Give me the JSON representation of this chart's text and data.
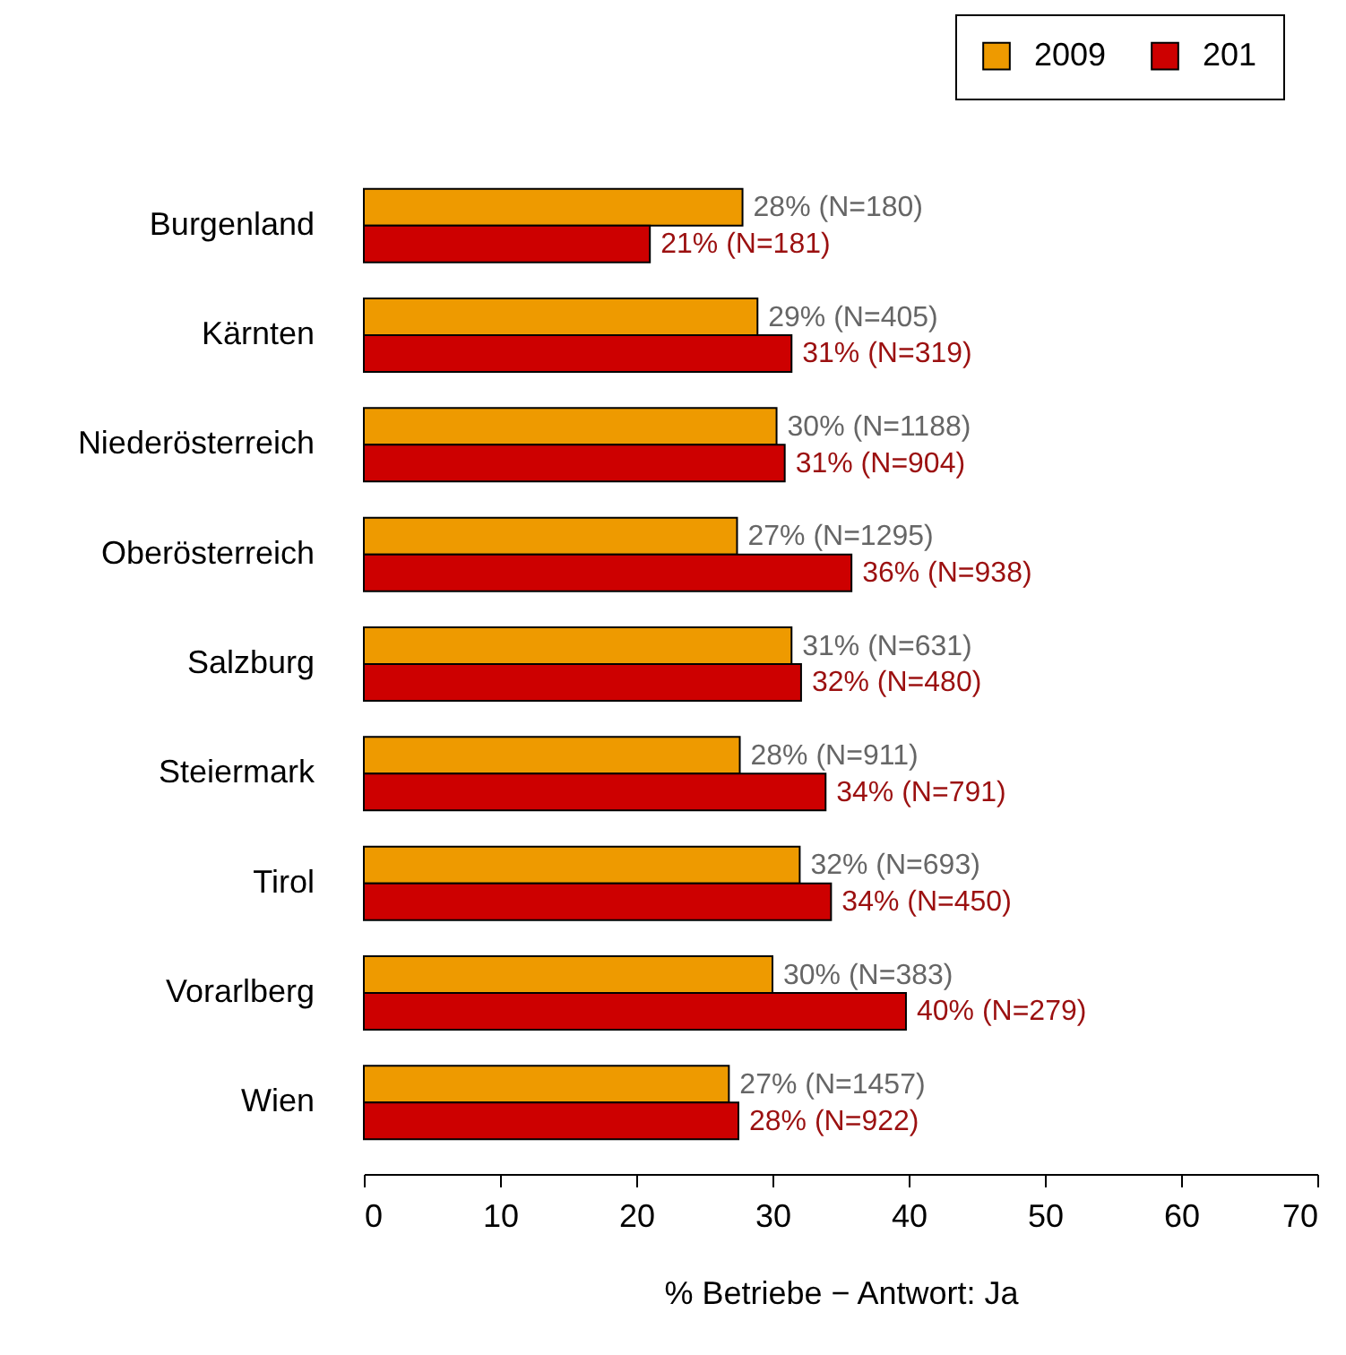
{
  "chart_data": {
    "type": "bar",
    "orientation": "horizontal",
    "xlabel": "% Betriebe − Antwort: Ja",
    "categories": [
      "Burgenland",
      "Kärnten",
      "Niederösterreich",
      "Oberösterreich",
      "Salzburg",
      "Steiermark",
      "Tirol",
      "Vorarlberg",
      "Wien"
    ],
    "series": [
      {
        "name": "2009",
        "color": "#ee9a00",
        "values": [
          27.8,
          28.9,
          30.3,
          27.4,
          31.4,
          27.6,
          32.0,
          30.0,
          26.8
        ],
        "value_labels": [
          "28% (N=180)",
          "29% (N=405)",
          "30% (N=1188)",
          "27% (N=1295)",
          "31% (N=631)",
          "28% (N=911)",
          "32% (N=693)",
          "30% (N=383)",
          "27% (N=1457)"
        ]
      },
      {
        "name": "201",
        "color": "#cd0000",
        "values": [
          21.0,
          31.4,
          30.9,
          35.8,
          32.1,
          33.9,
          34.3,
          39.8,
          27.5
        ],
        "value_labels": [
          "21% (N=181)",
          "31% (N=319)",
          "31% (N=904)",
          "36% (N=938)",
          "32% (N=480)",
          "34% (N=791)",
          "34% (N=450)",
          "40% (N=279)",
          "28% (N=922)"
        ]
      }
    ],
    "xlim": [
      0,
      70
    ],
    "xticks": [
      0,
      10,
      20,
      30,
      40,
      50,
      60,
      70
    ],
    "legend": "top right"
  }
}
